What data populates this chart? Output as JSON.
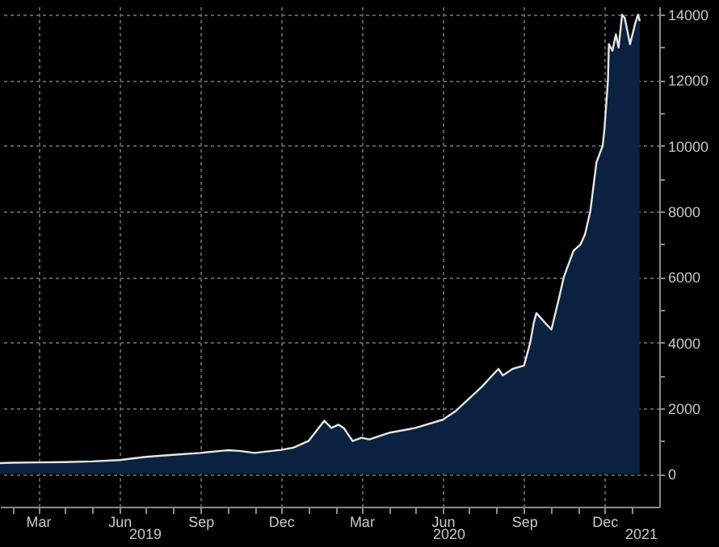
{
  "chart_data": {
    "type": "area",
    "x": [
      "2019-01-17",
      "2019-02-01",
      "2019-03-01",
      "2019-04-01",
      "2019-05-01",
      "2019-06-01",
      "2019-07-01",
      "2019-08-01",
      "2019-09-01",
      "2019-10-01",
      "2019-10-15",
      "2019-11-01",
      "2019-12-01",
      "2019-12-15",
      "2020-01-01",
      "2020-01-19",
      "2020-01-27",
      "2020-02-04",
      "2020-02-10",
      "2020-02-20",
      "2020-03-01",
      "2020-03-10",
      "2020-04-01",
      "2020-05-01",
      "2020-06-01",
      "2020-06-15",
      "2020-07-01",
      "2020-07-15",
      "2020-08-03",
      "2020-08-08",
      "2020-08-19",
      "2020-09-01",
      "2020-09-08",
      "2020-09-12",
      "2020-09-15",
      "2020-09-25",
      "2020-10-02",
      "2020-10-11",
      "2020-10-16",
      "2020-10-27",
      "2020-11-04",
      "2020-11-09",
      "2020-11-15",
      "2020-11-22",
      "2020-11-29",
      "2020-12-01",
      "2020-12-05",
      "2020-12-06",
      "2020-12-10",
      "2020-12-14",
      "2020-12-17",
      "2020-12-21",
      "2020-12-24",
      "2020-12-30",
      "2021-01-05",
      "2021-01-08",
      "2021-01-10"
    ],
    "series": [
      {
        "color": "#0a2240",
        "values": [
          330,
          340,
          350,
          360,
          380,
          420,
          520,
          580,
          640,
          720,
          700,
          640,
          730,
          800,
          1000,
          1620,
          1400,
          1500,
          1400,
          1000,
          1100,
          1050,
          1250,
          1400,
          1650,
          1900,
          2300,
          2650,
          3200,
          3000,
          3200,
          3300,
          4000,
          4600,
          4900,
          4600,
          4400,
          5400,
          6000,
          6800,
          7000,
          7300,
          8000,
          9500,
          10000,
          10500,
          12000,
          13100,
          12900,
          13400,
          13000,
          14000,
          13900,
          13100,
          13750,
          14000,
          13800
        ]
      }
    ],
    "xlim": [
      "2019-01-17",
      "2021-02-01"
    ],
    "xticks": [
      {
        "value": "2019-02-01",
        "label": null
      },
      {
        "value": "2019-03-01",
        "label": "Mar"
      },
      {
        "value": "2019-04-01",
        "label": null
      },
      {
        "value": "2019-05-01",
        "label": null
      },
      {
        "value": "2019-06-01",
        "label": "Jun"
      },
      {
        "value": "2019-07-01",
        "label": null
      },
      {
        "value": "2019-08-01",
        "label": null
      },
      {
        "value": "2019-09-01",
        "label": "Sep"
      },
      {
        "value": "2019-10-01",
        "label": null
      },
      {
        "value": "2019-11-01",
        "label": null
      },
      {
        "value": "2019-12-01",
        "label": "Dec"
      },
      {
        "value": "2020-01-01",
        "label": null
      },
      {
        "value": "2020-02-01",
        "label": null
      },
      {
        "value": "2020-03-01",
        "label": "Mar"
      },
      {
        "value": "2020-04-01",
        "label": null
      },
      {
        "value": "2020-05-01",
        "label": null
      },
      {
        "value": "2020-06-01",
        "label": "Jun"
      },
      {
        "value": "2020-07-01",
        "label": null
      },
      {
        "value": "2020-08-01",
        "label": null
      },
      {
        "value": "2020-09-01",
        "label": "Sep"
      },
      {
        "value": "2020-10-01",
        "label": null
      },
      {
        "value": "2020-11-01",
        "label": null
      },
      {
        "value": "2020-12-01",
        "label": "Dec"
      },
      {
        "value": "2021-01-01",
        "label": null
      }
    ],
    "ylim": [
      -1000,
      14250
    ],
    "yticks": [
      0,
      {
        "value": 1000,
        "label": null
      },
      2000,
      {
        "value": 3000,
        "label": null
      },
      4000,
      {
        "value": 5000,
        "label": null
      },
      6000,
      {
        "value": 7000,
        "label": null
      },
      8000,
      {
        "value": 9000,
        "label": null
      },
      10000,
      {
        "value": 11000,
        "label": null
      },
      12000,
      {
        "value": 13000,
        "label": null
      },
      14000
    ],
    "annotations": [
      "2019",
      "2020",
      "2021"
    ],
    "grid": true
  }
}
